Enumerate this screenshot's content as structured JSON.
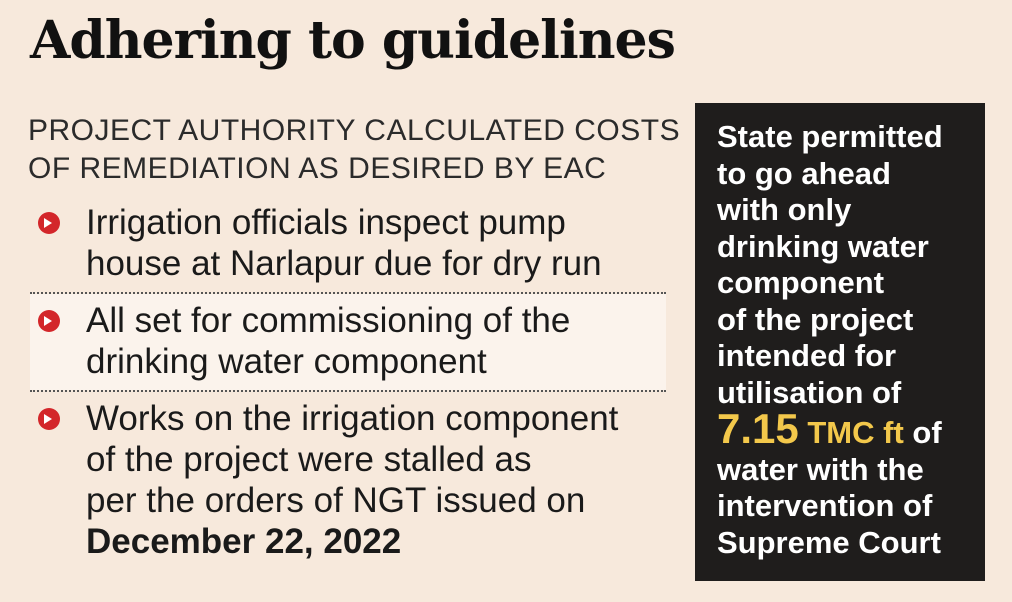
{
  "title": "Adhering to guidelines",
  "subhead": {
    "line1": "PROJECT AUTHORITY CALCULATED COSTS",
    "line2": "OF REMEDIATION AS DESIRED BY EAC"
  },
  "items": [
    {
      "line1": "Irrigation officials inspect pump",
      "line2": "house at Narlapur due for dry run"
    },
    {
      "line1": "All set for commissioning of the",
      "line2": "drinking water component"
    },
    {
      "line1": "Works on the irrigation component",
      "line2": "of the project were stalled as",
      "line3": "per the orders of NGT issued on",
      "date": "December 22, 2022"
    }
  ],
  "box": {
    "lines_before": [
      "State permitted",
      "to go ahead",
      "with only",
      "drinking water",
      "component",
      "of the project",
      "intended for",
      "utilisation of"
    ],
    "value": "7.15",
    "unit": "TMC ft",
    "after_unit": " of",
    "lines_after": [
      "water with the",
      "intervention of",
      "Supreme Court"
    ]
  },
  "colors": {
    "background": "#f7e9dc",
    "bullet": "#d3262a",
    "box_bg": "#1f1d1c",
    "highlight": "#f3c84b"
  },
  "icons": {
    "bullet": "red-circle-arrow-icon"
  }
}
